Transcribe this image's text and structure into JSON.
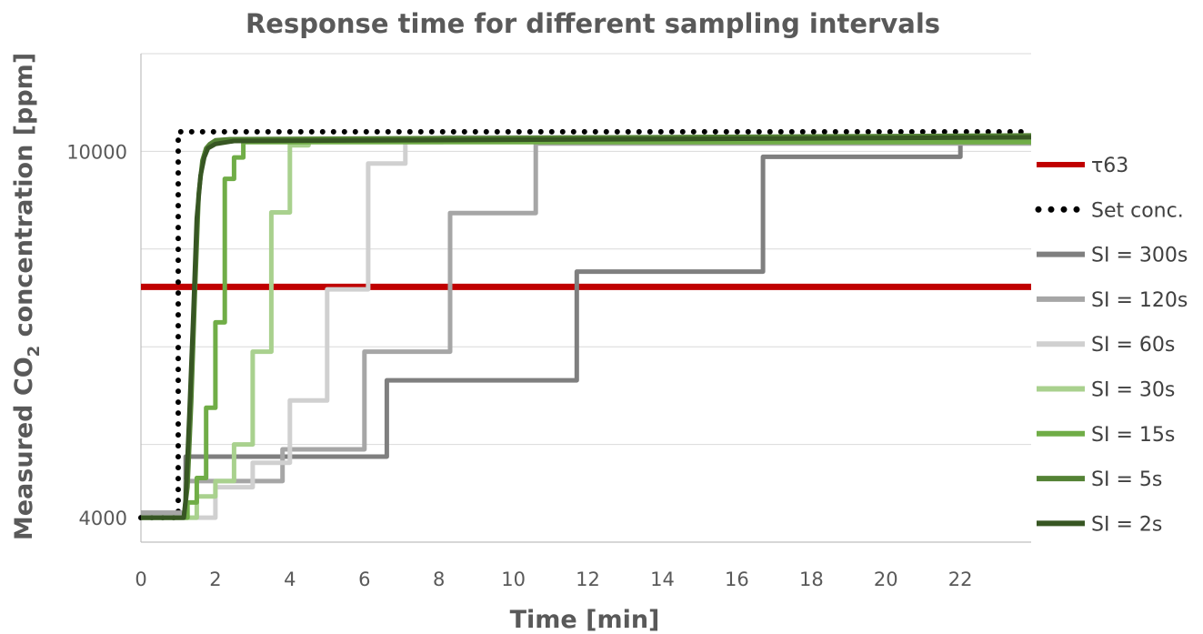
{
  "chart_data": {
    "type": "line",
    "title": "Response time for different sampling intervals",
    "xlabel": "Time [min]",
    "ylabel_parts": [
      "Measured CO",
      "2",
      " concentration [ppm]"
    ],
    "xlim": [
      0,
      23.9
    ],
    "ylim": [
      3600,
      11600
    ],
    "x_ticks": [
      0,
      2,
      4,
      6,
      8,
      10,
      12,
      14,
      16,
      18,
      20,
      22
    ],
    "y_ticks_labeled": [
      4000,
      10000
    ],
    "y_gridlines": [
      5200,
      6800,
      8400,
      10000,
      11600
    ],
    "grid": "horizontal",
    "legend_position": "right",
    "series": [
      {
        "name": "τ63",
        "color": "#c00000",
        "style": "solid",
        "x": [
          0,
          23.9
        ],
        "y": [
          7780,
          7780
        ]
      },
      {
        "name": "Set conc.",
        "color": "#000000",
        "style": "dotted",
        "x": [
          0,
          1.0,
          1.0,
          23.9
        ],
        "y": [
          4000,
          4000,
          10320,
          10320
        ]
      },
      {
        "name": "SI = 300s",
        "color": "#7f7f7f",
        "style": "solid",
        "x": [
          0,
          1.2,
          1.2,
          6.6,
          6.6,
          11.7,
          11.7,
          16.7,
          16.7,
          22.0,
          22.0,
          23.9
        ],
        "y": [
          4080,
          4080,
          5000,
          5000,
          6250,
          6250,
          8030,
          8030,
          9910,
          9910,
          10200,
          10200
        ]
      },
      {
        "name": "SI = 120s",
        "color": "#a6a6a6",
        "style": "solid",
        "x": [
          0,
          1.2,
          1.2,
          3.8,
          3.8,
          6.0,
          6.0,
          8.3,
          8.3,
          10.6,
          10.6,
          23.9
        ],
        "y": [
          4080,
          4080,
          4600,
          4600,
          5120,
          5120,
          6720,
          6720,
          8990,
          8990,
          10130,
          10130
        ]
      },
      {
        "name": "SI = 60s",
        "color": "#d0d0d0",
        "style": "solid",
        "x": [
          0,
          2.0,
          2.0,
          3.0,
          3.0,
          4.0,
          4.0,
          5.0,
          5.0,
          6.1,
          6.1,
          7.1,
          7.1,
          8.1,
          8.1,
          23.9
        ],
        "y": [
          4000,
          4000,
          4500,
          4500,
          4900,
          4900,
          5920,
          5920,
          7740,
          7740,
          9800,
          9800,
          10150,
          10150,
          10230,
          10230
        ]
      },
      {
        "name": "SI = 30s",
        "color": "#a9d18e",
        "style": "solid",
        "x": [
          0,
          1.5,
          1.5,
          2.0,
          2.0,
          2.5,
          2.5,
          3.0,
          3.0,
          3.5,
          3.5,
          4.0,
          4.0,
          4.5,
          4.5,
          23.9
        ],
        "y": [
          4000,
          4000,
          4350,
          4350,
          4600,
          4600,
          5200,
          5200,
          6720,
          6720,
          9000,
          9000,
          10100,
          10100,
          10180,
          10180
        ]
      },
      {
        "name": "SI = 15s",
        "color": "#70ad47",
        "style": "solid",
        "x": [
          0,
          1.25,
          1.25,
          1.5,
          1.5,
          1.75,
          1.75,
          2.0,
          2.0,
          2.25,
          2.25,
          2.5,
          2.5,
          2.75,
          2.75,
          23.9
        ],
        "y": [
          4000,
          4000,
          4250,
          4250,
          4650,
          4650,
          5800,
          5800,
          7200,
          7200,
          9550,
          9550,
          9900,
          9900,
          10150,
          10150
        ]
      },
      {
        "name": "SI = 5s",
        "color": "#548235",
        "style": "solid",
        "x": [
          0,
          1.15,
          1.25,
          1.35,
          1.45,
          1.55,
          1.65,
          1.75,
          1.85,
          2.0,
          2.4,
          23.9
        ],
        "y": [
          4000,
          4000,
          4500,
          5900,
          7700,
          9300,
          9850,
          10050,
          10120,
          10180,
          10200,
          10260
        ]
      },
      {
        "name": "SI = 2s",
        "color": "#375623",
        "style": "solid",
        "x": [
          0,
          1.15,
          1.2,
          1.3,
          1.4,
          1.5,
          1.6,
          1.7,
          1.8,
          2.0,
          2.5,
          23.9
        ],
        "y": [
          4000,
          4000,
          4300,
          5700,
          7200,
          8900,
          9600,
          9900,
          10050,
          10120,
          10170,
          10230
        ]
      }
    ]
  }
}
